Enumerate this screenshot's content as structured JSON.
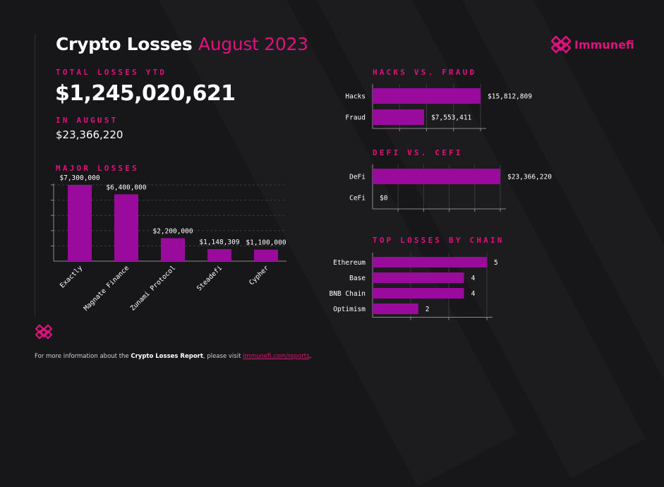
{
  "title": {
    "main": "Crypto Losses",
    "accent": "August 2023"
  },
  "brand": {
    "name": "Immunefi",
    "color": "#e0117e"
  },
  "total_ytd": {
    "label": "TOTAL LOSSES YTD",
    "value": "$1,245,020,621"
  },
  "august": {
    "label": "IN AUGUST",
    "value": "$23,366,220"
  },
  "footer": {
    "prefix": "For more information about the ",
    "report": "Crypto Losses Report",
    "middle": ", please visit ",
    "link": "immunefi.com/reports",
    "suffix": "."
  },
  "colors": {
    "accent": "#e0117e",
    "bar": "#9a0a9c",
    "background": "#171618"
  },
  "icons": {
    "logo": "immunefi-logo-icon"
  },
  "chart_data": [
    {
      "id": "major_losses",
      "type": "bar",
      "title": "MAJOR LOSSES",
      "categories": [
        "Exactly",
        "Magnate Finance",
        "Zunami Protocol",
        "Steadefi",
        "Cypher"
      ],
      "values": [
        7300000,
        6400000,
        2200000,
        1148309,
        1100000
      ],
      "labels": [
        "$7,300,000",
        "$6,400,000",
        "$2,200,000",
        "$1,148,309",
        "$1,100,000"
      ],
      "ylim": [
        0,
        7300000
      ],
      "grid": true
    },
    {
      "id": "hacks_vs_fraud",
      "type": "bar",
      "orientation": "horizontal",
      "title": "HACKS VS. FRAUD",
      "categories": [
        "Hacks",
        "Fraud"
      ],
      "values": [
        15812809,
        7553411
      ],
      "labels": [
        "$15,812,809",
        "$7,553,411"
      ],
      "xlim": [
        0,
        15812809
      ],
      "grid": true
    },
    {
      "id": "defi_vs_cefi",
      "type": "bar",
      "orientation": "horizontal",
      "title": "DEFI VS. CEFI",
      "categories": [
        "DeFi",
        "CeFi"
      ],
      "values": [
        23366220,
        0
      ],
      "labels": [
        "$23,366,220",
        "$0"
      ],
      "xlim": [
        0,
        23366220
      ],
      "grid": true
    },
    {
      "id": "top_losses_by_chain",
      "type": "bar",
      "orientation": "horizontal",
      "title": "TOP LOSSES BY CHAIN",
      "categories": [
        "Ethereum",
        "Base",
        "BNB Chain",
        "Optimism"
      ],
      "values": [
        5,
        4,
        4,
        2
      ],
      "labels": [
        "5",
        "4",
        "4",
        "2"
      ],
      "xlim": [
        0,
        5
      ],
      "grid": true
    }
  ]
}
